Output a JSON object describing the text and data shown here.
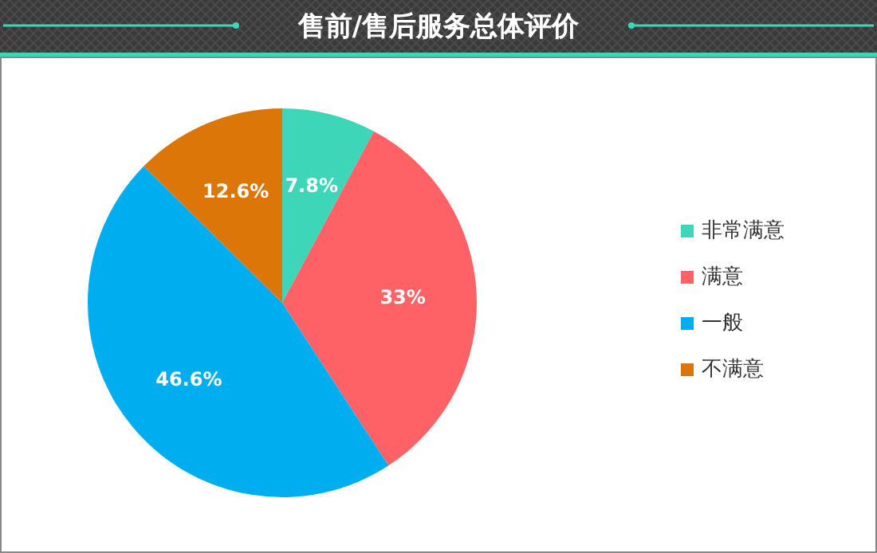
{
  "chart_data": {
    "type": "pie",
    "title": "售前/售后服务总体评价",
    "categories": [
      "非常满意",
      "满意",
      "一般",
      "不满意"
    ],
    "values": [
      7.8,
      33,
      46.6,
      12.6
    ],
    "colors": [
      "#3dd6b8",
      "#ff6266",
      "#00aeef",
      "#dc7608"
    ],
    "value_labels": [
      "7.8%",
      "33%",
      "46.6%",
      "12.6%"
    ],
    "legend": "right"
  }
}
